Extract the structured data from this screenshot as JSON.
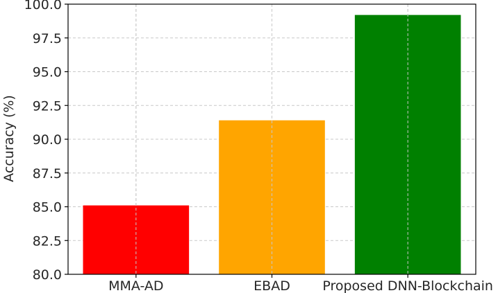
{
  "chart_data": {
    "type": "bar",
    "title": "",
    "xlabel": "",
    "ylabel": "Accuracy (%)",
    "categories": [
      "MMA-AD",
      "EBAD",
      "Proposed DNN-Blockchain"
    ],
    "values": [
      85.1,
      91.4,
      99.2
    ],
    "colors": [
      "#ff0000",
      "#ffa500",
      "#008000"
    ],
    "ylim": [
      80.0,
      100.0
    ],
    "yticks": [
      "80.0",
      "82.5",
      "85.0",
      "87.5",
      "90.0",
      "92.5",
      "95.0",
      "97.5",
      "100.0"
    ],
    "grid": true
  }
}
